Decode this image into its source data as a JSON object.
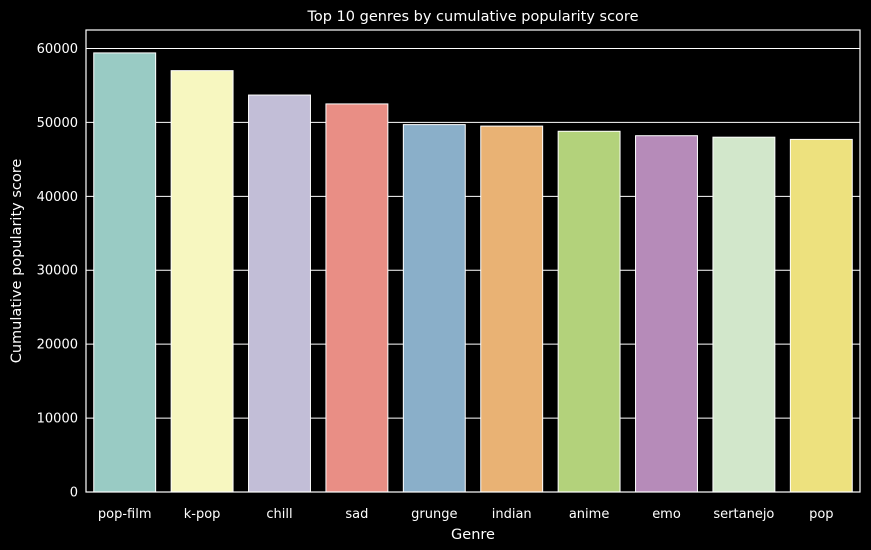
{
  "chart_data": {
    "type": "bar",
    "title": "Top 10 genres by cumulative popularity score",
    "xlabel": "Genre",
    "ylabel": "Cumulative popularity score",
    "categories": [
      "pop-film",
      "k-pop",
      "chill",
      "sad",
      "grunge",
      "indian",
      "anime",
      "emo",
      "sertanejo",
      "pop"
    ],
    "values": [
      59400,
      57000,
      53700,
      52500,
      49700,
      49500,
      48800,
      48200,
      48000,
      47700
    ],
    "colors": [
      "#99cbc4",
      "#f7f7c0",
      "#c2bed7",
      "#e98e85",
      "#8aafc9",
      "#e9b274",
      "#b3d27b",
      "#b68bb9",
      "#d2e7cb",
      "#ede17e"
    ],
    "ylim": [
      0,
      62500
    ],
    "yticks": [
      0,
      10000,
      20000,
      30000,
      40000,
      50000,
      60000
    ],
    "grid": true,
    "background": "#000000",
    "foreground": "#ffffff"
  }
}
